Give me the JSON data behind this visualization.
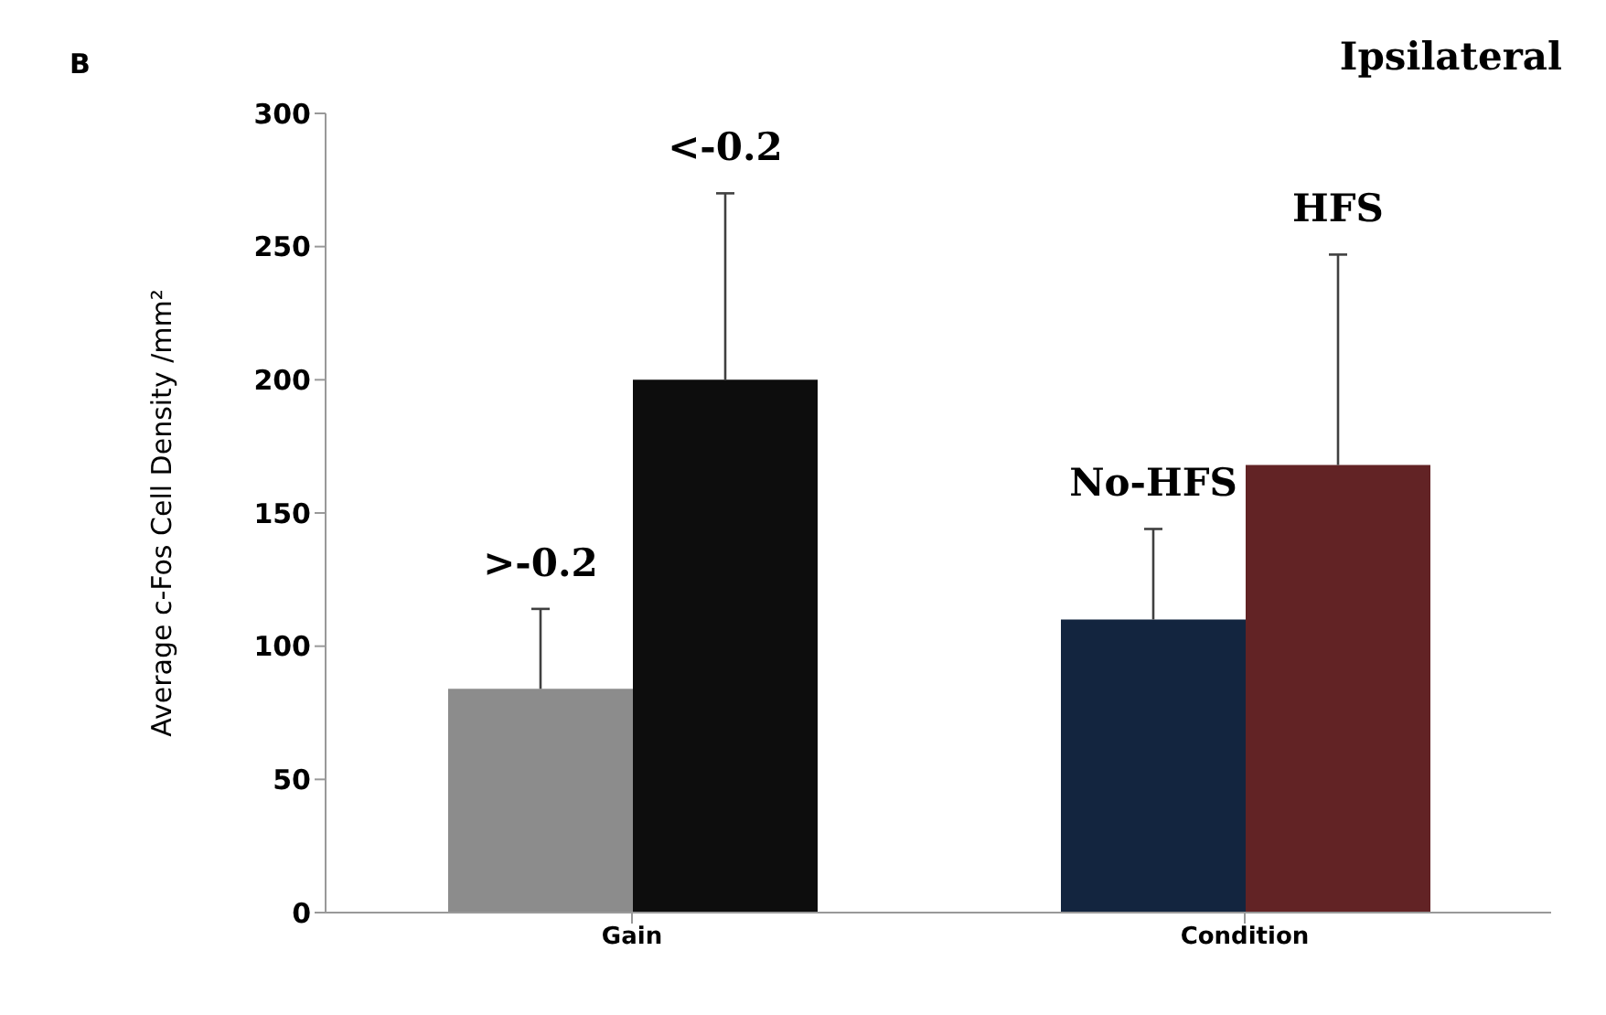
{
  "chart_data": {
    "type": "bar",
    "title": "Ipsilateral",
    "ylabel": "Average  c-Fos  Cell Density /mm²",
    "annotations": [
      "B",
      ">-0.2",
      "<-0.2",
      "No-HFS",
      "HFS"
    ],
    "categories": [
      "Gain",
      "Condition"
    ],
    "series": [
      {
        "color": "#8c8c8c",
        "values": [
          84,
          null
        ],
        "errors": [
          [
            84,
            114
          ],
          null
        ]
      },
      {
        "color": "#0d0d0d",
        "values": [
          200,
          null
        ],
        "errors": [
          [
            200,
            270
          ],
          null
        ]
      },
      {
        "color": "#13253f",
        "values": [
          null,
          110
        ],
        "errors": [
          null,
          [
            110,
            144
          ]
        ]
      },
      {
        "color": "#622325",
        "values": [
          null,
          168
        ],
        "errors": [
          null,
          [
            168,
            247
          ]
        ]
      }
    ],
    "ylim": [
      0,
      300
    ],
    "yticks": [
      0,
      50,
      100,
      150,
      200,
      250,
      300
    ],
    "grid": false,
    "legend": false
  }
}
